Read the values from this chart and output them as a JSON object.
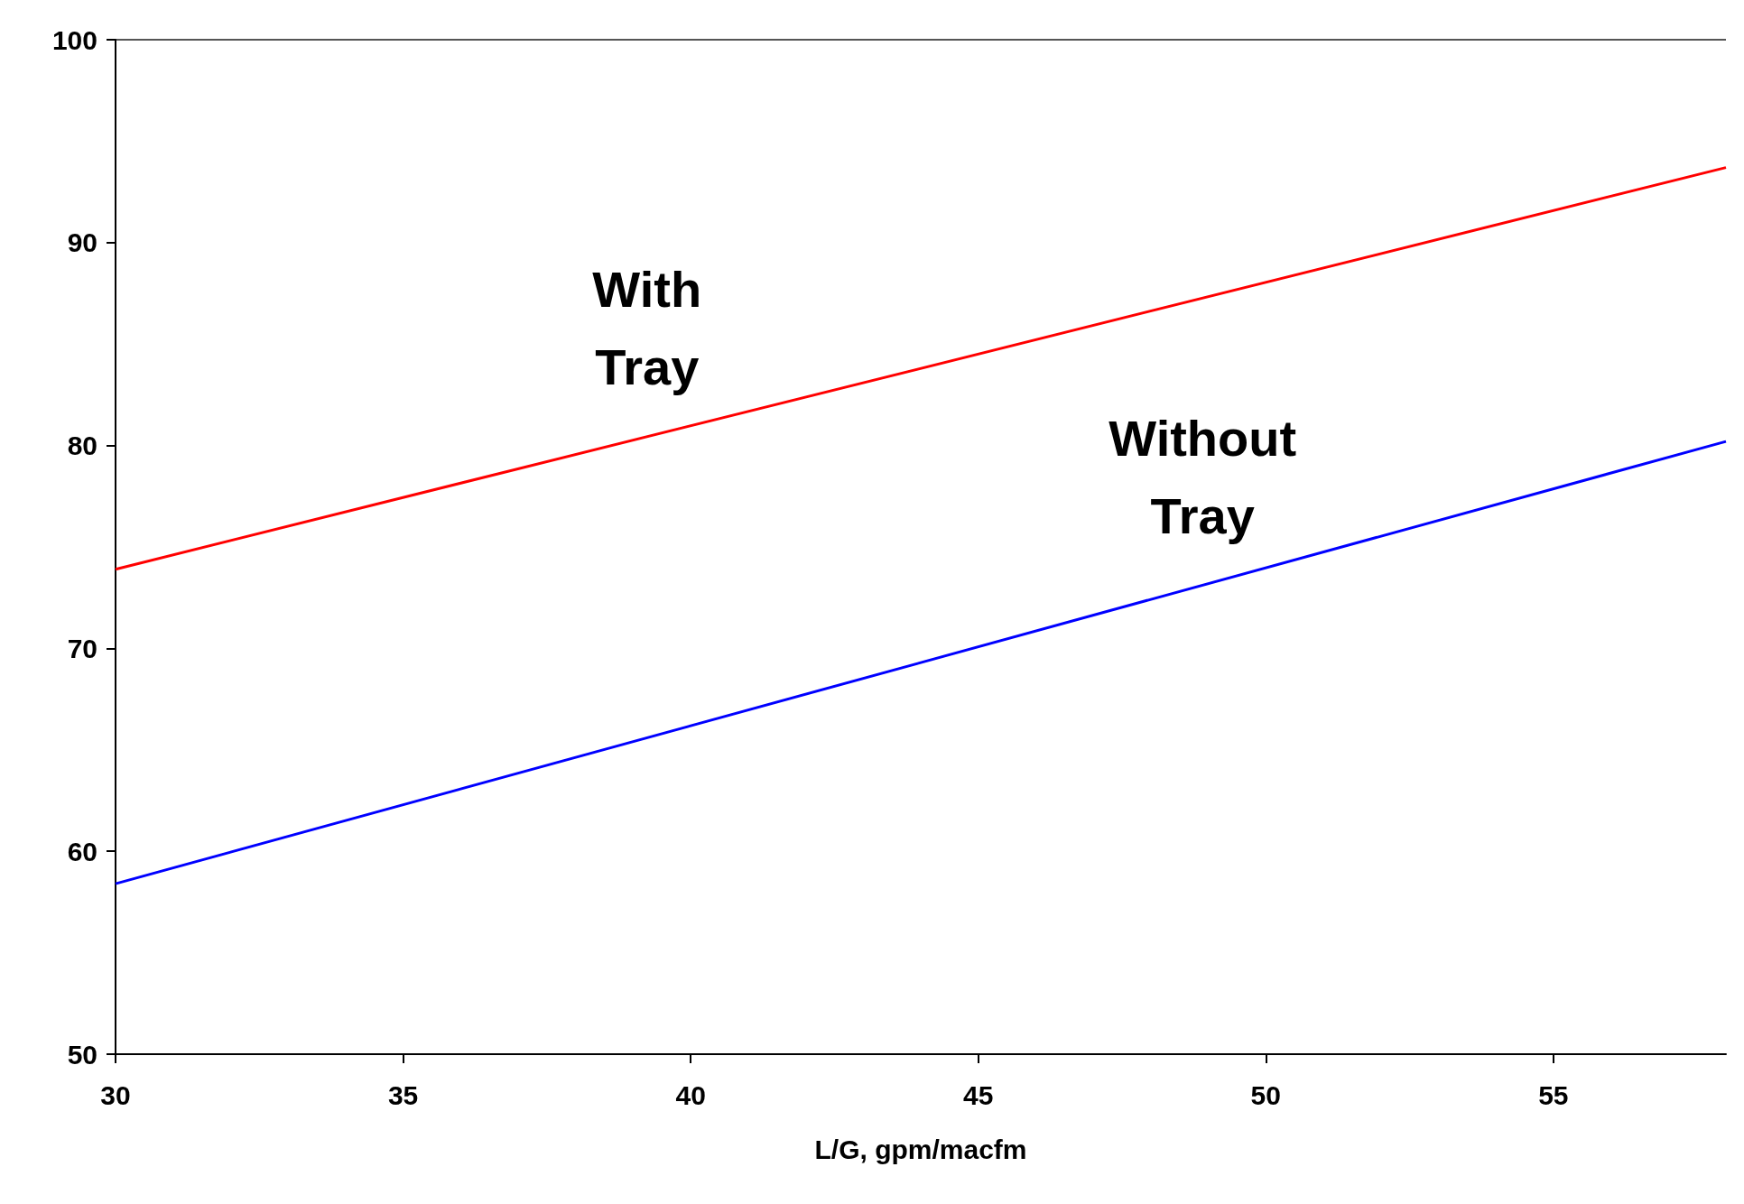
{
  "chart_data": {
    "type": "line",
    "xlabel": "L/G, gpm/macfm",
    "x": [
      30,
      58
    ],
    "series": [
      {
        "color": "#ff0000",
        "values": [
          73.9,
          93.7
        ]
      },
      {
        "color": "#0000ff",
        "values": [
          58.4,
          80.2
        ]
      }
    ],
    "xlim": [
      30,
      58
    ],
    "xticks": [
      30,
      35,
      40,
      45,
      50,
      55
    ],
    "ylim": [
      50,
      100
    ],
    "yticks": [
      50,
      60,
      70,
      80,
      90,
      100
    ],
    "grid": false,
    "marker": "none",
    "line_style": "solid",
    "annotations": [
      "With\nTray",
      "Without\nTray"
    ]
  }
}
